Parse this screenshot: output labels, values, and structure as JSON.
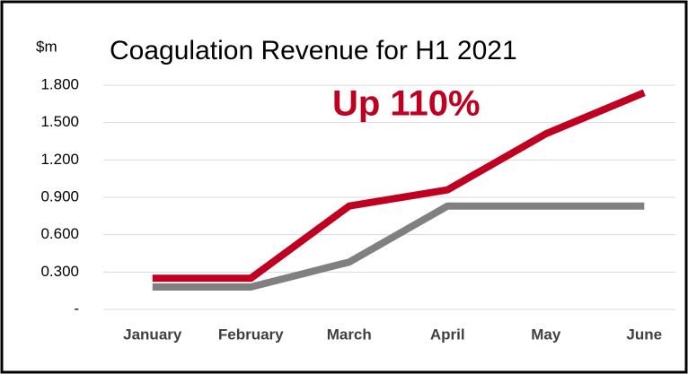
{
  "chart_data": {
    "type": "line",
    "title": "Coagulation Revenue for H1 2021",
    "y_axis_label": "$m",
    "annotation": "Up 110%",
    "categories": [
      "January",
      "February",
      "March",
      "April",
      "May",
      "June"
    ],
    "series": [
      {
        "color": "#c00020",
        "values": [
          0.25,
          0.25,
          0.83,
          0.96,
          1.41,
          1.74
        ]
      },
      {
        "color": "#808080",
        "values": [
          0.18,
          0.18,
          0.38,
          0.83,
          0.83,
          0.83
        ]
      }
    ],
    "ylim": [
      0,
      1.8
    ],
    "yticks": [
      {
        "value": 0,
        "label": "-"
      },
      {
        "value": 0.3,
        "label": "0.300"
      },
      {
        "value": 0.6,
        "label": "0.600"
      },
      {
        "value": 0.9,
        "label": "0.900"
      },
      {
        "value": 1.2,
        "label": "1.200"
      },
      {
        "value": 1.5,
        "label": "1.500"
      },
      {
        "value": 1.8,
        "label": "1.800"
      }
    ],
    "grid": true
  }
}
